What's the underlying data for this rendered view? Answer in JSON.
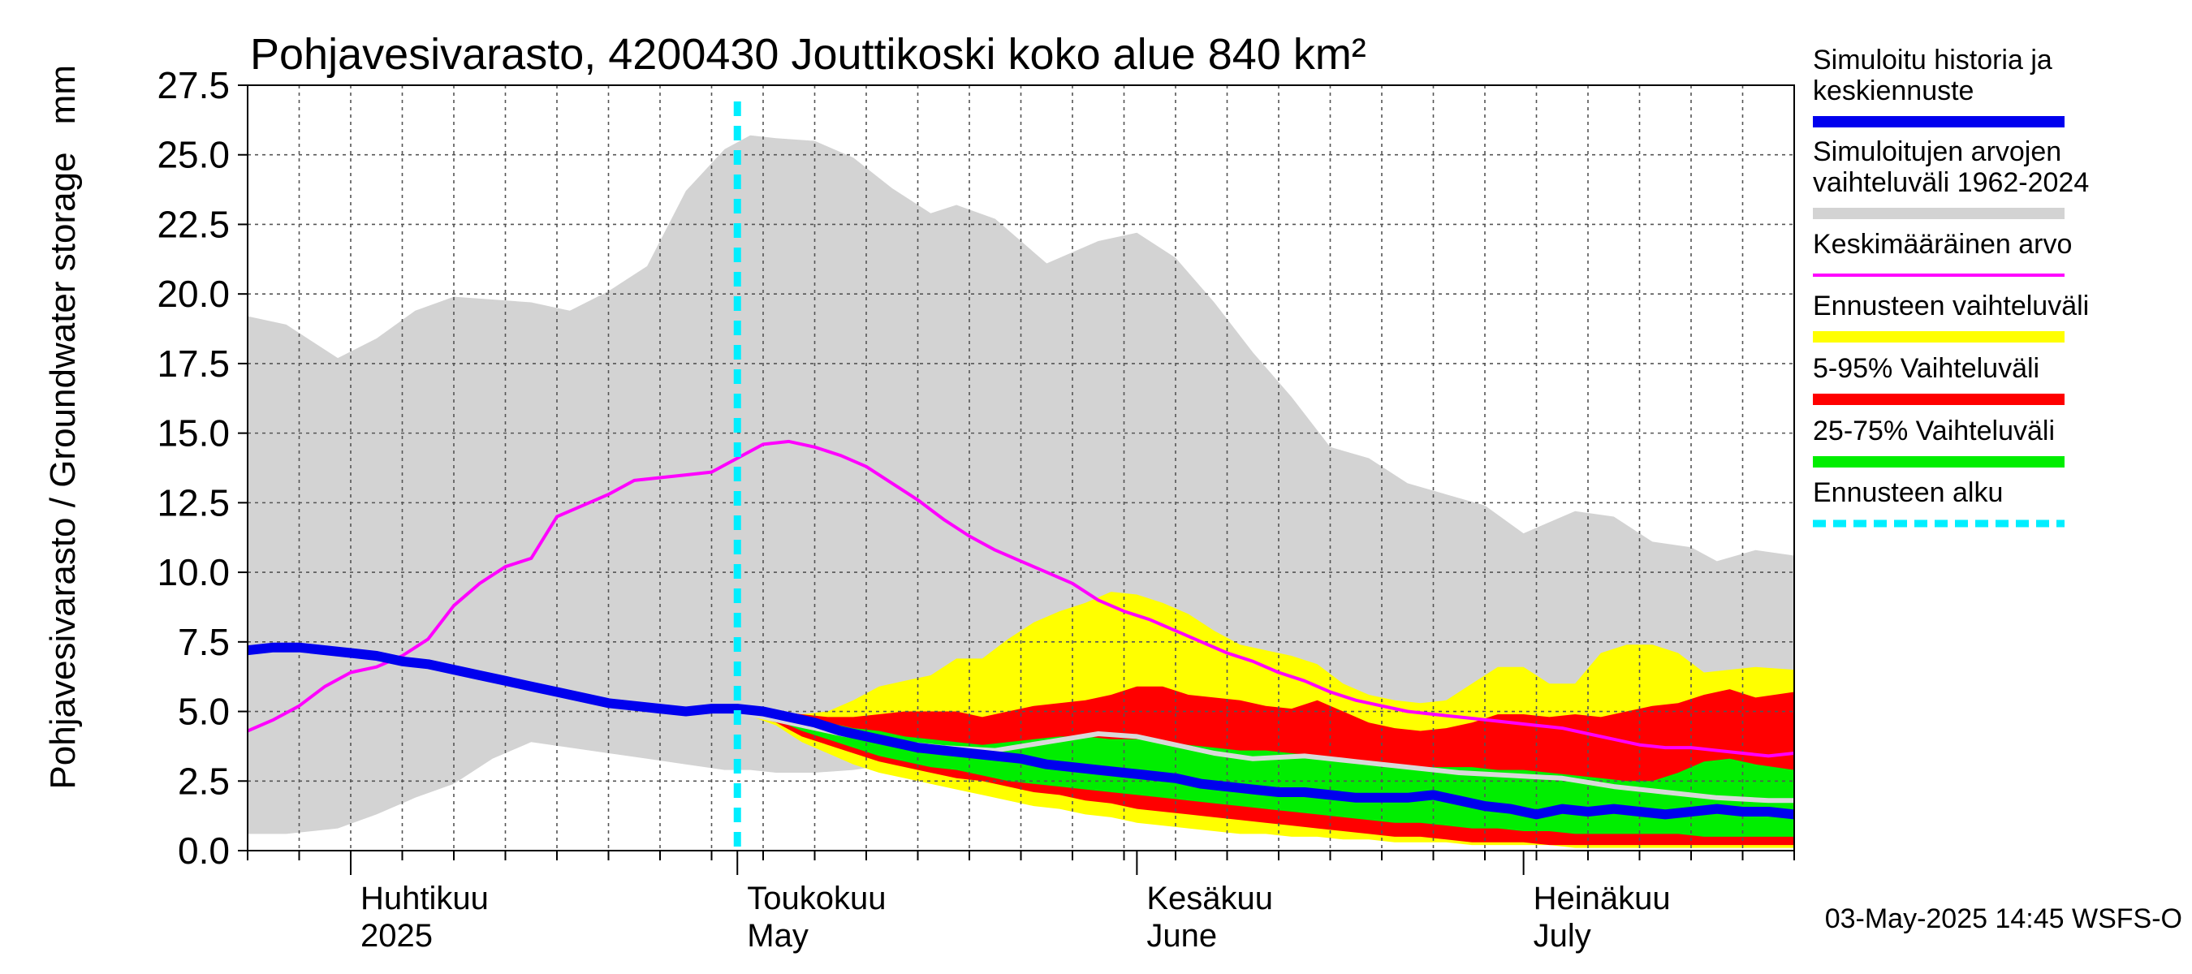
{
  "chart_data": {
    "type": "area",
    "title": "Pohjavesivarasto, 4200430 Jouttikoski koko alue 840 km²",
    "unit_label": "mm",
    "ylabel": "Pohjavesivarasto / Groundwater storage",
    "ylim": [
      0,
      27.5
    ],
    "yticks": [
      "0.0",
      "2.5",
      "5.0",
      "7.5",
      "10.0",
      "12.5",
      "15.0",
      "17.5",
      "20.0",
      "22.5",
      "25.0",
      "27.5"
    ],
    "xlim": [
      0,
      120
    ],
    "x_unit": "days since 2025-03-24",
    "forecast_start_day": 38,
    "month_boundaries": [
      8,
      38,
      69,
      99
    ],
    "month_labels": [
      {
        "day": 8,
        "line1": "Huhtikuu",
        "line2": "2025"
      },
      {
        "day": 38,
        "line1": "Toukokuu",
        "line2": "May"
      },
      {
        "day": 69,
        "line1": "Kesäkuu",
        "line2": "June"
      },
      {
        "day": 99,
        "line1": "Heinäkuu",
        "line2": "July"
      }
    ],
    "timestamp": "03-May-2025 14:45 WSFS-O",
    "legend": [
      {
        "label_lines": [
          "Simuloitu historia ja",
          "keskiennuste"
        ],
        "color": "#0000ee",
        "style": "thick"
      },
      {
        "label_lines": [
          "Simuloitujen arvojen",
          "vaihteluväli 1962-2024"
        ],
        "color": "#d3d3d3",
        "style": "thick"
      },
      {
        "label_lines": [
          "Keskimääräinen arvo"
        ],
        "color": "#ff00ff",
        "style": "thin"
      },
      {
        "label_lines": [
          "Ennusteen vaihteluväli"
        ],
        "color": "#ffff00",
        "style": "thick"
      },
      {
        "label_lines": [
          "5-95% Vaihteluväli"
        ],
        "color": "#ff0000",
        "style": "thick"
      },
      {
        "label_lines": [
          "25-75% Vaihteluväli"
        ],
        "color": "#00ee00",
        "style": "thick"
      },
      {
        "label_lines": [
          "Ennusteen alku"
        ],
        "color": "#00eeff",
        "style": "dashed"
      }
    ],
    "series": {
      "hist_range": {
        "name": "Simuloitujen arvojen vaihteluväli 1962-2024",
        "x": [
          0,
          3,
          7,
          10,
          13,
          16,
          19,
          22,
          25,
          28,
          31,
          34,
          37,
          39,
          41,
          44,
          47,
          50,
          53,
          55,
          58,
          62,
          66,
          69,
          72,
          75,
          78,
          81,
          84,
          87,
          90,
          93,
          96,
          99,
          101,
          103,
          106,
          109,
          112,
          114,
          117,
          120
        ],
        "upper": [
          19.2,
          18.9,
          17.7,
          18.4,
          19.4,
          19.9,
          19.8,
          19.7,
          19.4,
          20.1,
          21.0,
          23.7,
          25.2,
          25.7,
          25.6,
          25.5,
          24.9,
          23.8,
          22.9,
          23.2,
          22.7,
          21.1,
          21.9,
          22.2,
          21.3,
          19.7,
          17.9,
          16.3,
          14.5,
          14.1,
          13.2,
          12.8,
          12.4,
          11.4,
          11.8,
          12.2,
          12.0,
          11.1,
          10.9,
          10.4,
          10.8,
          10.6
        ],
        "lower": [
          0.6,
          0.6,
          0.8,
          1.3,
          1.9,
          2.4,
          3.3,
          3.9,
          3.7,
          3.5,
          3.3,
          3.1,
          2.9,
          2.9,
          2.8,
          2.8,
          2.9,
          3.1,
          3.2,
          2.9,
          2.8,
          2.7,
          2.6,
          2.5,
          2.3,
          2.1,
          1.9,
          1.7,
          1.6,
          1.4,
          1.3,
          1.1,
          1.0,
          1.0,
          0.9,
          0.8,
          0.7,
          0.6,
          0.5,
          0.5,
          0.4,
          0.4
        ]
      },
      "forecast_range": {
        "name": "Ennusteen vaihteluväli",
        "x": [
          38,
          41,
          43,
          45,
          47,
          49,
          51,
          53,
          55,
          57,
          59,
          61,
          63,
          65,
          67,
          69,
          71,
          73,
          75,
          77,
          79,
          81,
          83,
          85,
          87,
          89,
          91,
          93,
          95,
          97,
          99,
          101,
          103,
          105,
          107,
          109,
          111,
          113,
          115,
          117,
          120
        ],
        "upper": [
          5.1,
          5.0,
          4.9,
          5.0,
          5.4,
          5.9,
          6.1,
          6.3,
          6.9,
          6.9,
          7.6,
          8.2,
          8.6,
          8.9,
          9.3,
          9.2,
          8.9,
          8.5,
          7.9,
          7.4,
          7.2,
          7.0,
          6.7,
          6.0,
          5.6,
          5.4,
          5.3,
          5.4,
          6.0,
          6.6,
          6.6,
          6.0,
          6.0,
          7.1,
          7.4,
          7.4,
          7.1,
          6.4,
          6.5,
          6.6,
          6.5
        ],
        "lower": [
          5.0,
          4.5,
          3.9,
          3.5,
          3.1,
          2.8,
          2.6,
          2.4,
          2.2,
          2.0,
          1.8,
          1.6,
          1.5,
          1.3,
          1.2,
          1.0,
          0.9,
          0.8,
          0.7,
          0.6,
          0.6,
          0.5,
          0.5,
          0.4,
          0.4,
          0.3,
          0.3,
          0.3,
          0.2,
          0.2,
          0.2,
          0.2,
          0.1,
          0.1,
          0.1,
          0.1,
          0.1,
          0.1,
          0.1,
          0.1,
          0.1
        ]
      },
      "p5_95": {
        "name": "5-95% Vaihteluväli",
        "x": [
          38,
          41,
          43,
          45,
          47,
          49,
          51,
          53,
          55,
          57,
          59,
          61,
          63,
          65,
          67,
          69,
          71,
          73,
          75,
          77,
          79,
          81,
          83,
          85,
          87,
          89,
          91,
          93,
          95,
          97,
          99,
          101,
          103,
          105,
          107,
          109,
          111,
          113,
          115,
          117,
          120
        ],
        "upper": [
          5.1,
          5.0,
          4.9,
          4.8,
          4.8,
          4.9,
          5.0,
          5.0,
          5.0,
          4.8,
          5.0,
          5.2,
          5.3,
          5.4,
          5.6,
          5.9,
          5.9,
          5.6,
          5.5,
          5.4,
          5.2,
          5.1,
          5.4,
          5.0,
          4.6,
          4.4,
          4.3,
          4.4,
          4.6,
          4.9,
          4.9,
          4.8,
          4.9,
          4.8,
          5.0,
          5.2,
          5.3,
          5.6,
          5.8,
          5.5,
          5.7
        ],
        "lower": [
          5.0,
          4.6,
          4.1,
          3.8,
          3.5,
          3.2,
          3.0,
          2.8,
          2.6,
          2.5,
          2.3,
          2.1,
          2.0,
          1.8,
          1.7,
          1.5,
          1.4,
          1.3,
          1.2,
          1.1,
          1.0,
          0.9,
          0.8,
          0.7,
          0.6,
          0.5,
          0.5,
          0.4,
          0.3,
          0.3,
          0.3,
          0.2,
          0.2,
          0.2,
          0.2,
          0.2,
          0.2,
          0.2,
          0.2,
          0.2,
          0.2
        ]
      },
      "p25_75": {
        "name": "25-75% Vaihteluväli",
        "x": [
          38,
          41,
          43,
          45,
          47,
          49,
          51,
          53,
          55,
          57,
          59,
          61,
          63,
          65,
          67,
          69,
          71,
          73,
          75,
          77,
          79,
          81,
          83,
          85,
          87,
          89,
          91,
          93,
          95,
          97,
          99,
          101,
          103,
          105,
          107,
          109,
          111,
          113,
          115,
          117,
          120
        ],
        "upper": [
          5.1,
          5.0,
          4.8,
          4.6,
          4.4,
          4.3,
          4.1,
          4.0,
          3.9,
          3.8,
          3.9,
          4.0,
          4.1,
          4.1,
          4.0,
          4.0,
          3.9,
          3.8,
          3.7,
          3.6,
          3.6,
          3.5,
          3.4,
          3.3,
          3.2,
          3.1,
          3.0,
          3.0,
          3.0,
          2.9,
          2.9,
          2.8,
          2.7,
          2.6,
          2.5,
          2.5,
          2.8,
          3.2,
          3.3,
          3.1,
          2.9
        ],
        "lower": [
          5.0,
          4.7,
          4.3,
          4.0,
          3.7,
          3.4,
          3.2,
          3.0,
          2.9,
          2.7,
          2.5,
          2.4,
          2.3,
          2.2,
          2.1,
          2.0,
          1.9,
          1.8,
          1.7,
          1.6,
          1.5,
          1.4,
          1.3,
          1.2,
          1.1,
          1.0,
          1.0,
          0.9,
          0.8,
          0.8,
          0.7,
          0.7,
          0.6,
          0.6,
          0.6,
          0.6,
          0.6,
          0.5,
          0.5,
          0.5,
          0.5
        ]
      },
      "median_forecast": {
        "name": "Forecast median",
        "x": [
          38,
          42,
          46,
          50,
          54,
          58,
          62,
          66,
          69,
          72,
          75,
          78,
          82,
          86,
          90,
          94,
          98,
          102,
          106,
          110,
          114,
          118,
          120
        ],
        "values": [
          5.0,
          4.6,
          4.2,
          3.9,
          3.7,
          3.6,
          3.9,
          4.2,
          4.1,
          3.8,
          3.5,
          3.3,
          3.4,
          3.2,
          3.0,
          2.8,
          2.7,
          2.6,
          2.3,
          2.1,
          1.9,
          1.8,
          1.8
        ]
      },
      "mean_value": {
        "name": "Keskimääräinen arvo",
        "x": [
          0,
          2,
          4,
          6,
          8,
          10,
          12,
          14,
          16,
          18,
          20,
          22,
          24,
          26,
          28,
          30,
          32,
          34,
          36,
          38,
          40,
          42,
          44,
          46,
          48,
          50,
          52,
          54,
          56,
          58,
          60,
          62,
          64,
          66,
          68,
          70,
          72,
          74,
          76,
          78,
          80,
          82,
          84,
          86,
          88,
          90,
          92,
          94,
          96,
          98,
          100,
          102,
          104,
          106,
          108,
          110,
          112,
          114,
          116,
          118,
          120
        ],
        "values": [
          4.3,
          4.7,
          5.2,
          5.9,
          6.4,
          6.6,
          7.0,
          7.6,
          8.8,
          9.6,
          10.2,
          10.5,
          12.0,
          12.4,
          12.8,
          13.3,
          13.4,
          13.5,
          13.6,
          14.1,
          14.6,
          14.7,
          14.5,
          14.2,
          13.8,
          13.2,
          12.6,
          11.9,
          11.3,
          10.8,
          10.4,
          10.0,
          9.6,
          9.0,
          8.6,
          8.3,
          7.9,
          7.5,
          7.1,
          6.8,
          6.4,
          6.1,
          5.7,
          5.4,
          5.2,
          5.0,
          4.9,
          4.8,
          4.7,
          4.6,
          4.5,
          4.4,
          4.2,
          4.0,
          3.8,
          3.7,
          3.7,
          3.6,
          3.5,
          3.4,
          3.5
        ]
      },
      "simulated": {
        "name": "Simuloitu historia ja keskiennuste",
        "x": [
          0,
          2,
          4,
          6,
          8,
          10,
          12,
          14,
          16,
          18,
          20,
          22,
          24,
          26,
          28,
          30,
          32,
          34,
          36,
          38,
          40,
          42,
          44,
          46,
          48,
          50,
          52,
          54,
          56,
          58,
          60,
          62,
          64,
          66,
          68,
          70,
          72,
          74,
          76,
          78,
          80,
          82,
          84,
          86,
          88,
          90,
          92,
          94,
          96,
          98,
          100,
          102,
          104,
          106,
          108,
          110,
          112,
          114,
          116,
          118,
          120
        ],
        "values": [
          7.2,
          7.3,
          7.3,
          7.2,
          7.1,
          7.0,
          6.8,
          6.7,
          6.5,
          6.3,
          6.1,
          5.9,
          5.7,
          5.5,
          5.3,
          5.2,
          5.1,
          5.0,
          5.1,
          5.1,
          5.0,
          4.8,
          4.6,
          4.3,
          4.1,
          3.9,
          3.7,
          3.6,
          3.5,
          3.4,
          3.3,
          3.1,
          3.0,
          2.9,
          2.8,
          2.7,
          2.6,
          2.4,
          2.3,
          2.2,
          2.1,
          2.1,
          2.0,
          1.9,
          1.9,
          1.9,
          2.0,
          1.8,
          1.6,
          1.5,
          1.3,
          1.5,
          1.4,
          1.5,
          1.4,
          1.3,
          1.4,
          1.5,
          1.4,
          1.4,
          1.3
        ]
      }
    }
  }
}
